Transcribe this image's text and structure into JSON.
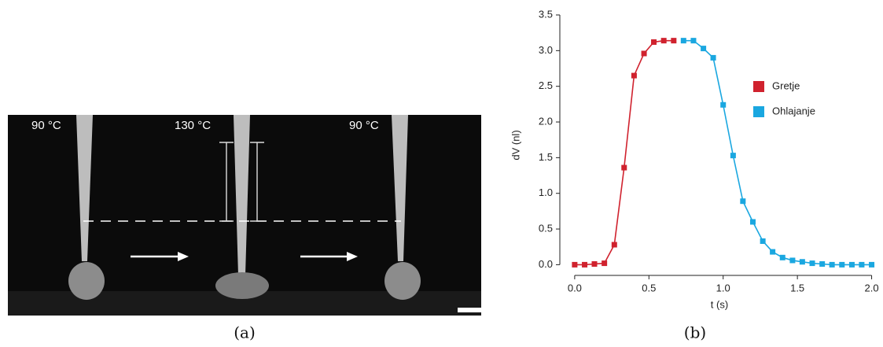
{
  "figure": {
    "photo_labels": [
      "90 °C",
      "130 °C",
      "90 °C"
    ],
    "captions": [
      "(a)",
      "(b)"
    ]
  },
  "chart_data": {
    "type": "line",
    "xlabel": "t (s)",
    "ylabel": "dV (nl)",
    "xlim": [
      -0.1,
      2.05
    ],
    "ylim": [
      -0.15,
      3.5
    ],
    "xticks": [
      {
        "value": 0,
        "label": "0.0"
      },
      0.5,
      {
        "value": 1,
        "label": "1.0"
      },
      1.5,
      {
        "value": 2,
        "label": "2.0"
      }
    ],
    "yticks": [
      {
        "value": 0,
        "label": "0.0"
      },
      0.5,
      {
        "value": 1,
        "label": "1.0"
      },
      1.5,
      {
        "value": 2,
        "label": "2.0"
      },
      2.5,
      {
        "value": 3,
        "label": "3.0"
      },
      3.5
    ],
    "legend": "center-right",
    "series": [
      {
        "name": "Gretje",
        "color": "#d0222e",
        "x": [
          0,
          0.067,
          0.133,
          0.2,
          0.267,
          0.333,
          0.4,
          0.467,
          0.533,
          0.6,
          0.667
        ],
        "values": [
          0,
          0,
          0.01,
          0.02,
          0.28,
          1.36,
          2.65,
          2.96,
          3.12,
          3.14,
          3.14
        ]
      },
      {
        "name": "Ohlajanje",
        "color": "#1aa7e0",
        "x": [
          0.733,
          0.8,
          0.867,
          0.933,
          1.0,
          1.067,
          1.133,
          1.2,
          1.267,
          1.333,
          1.4,
          1.467,
          1.533,
          1.6,
          1.667,
          1.733,
          1.8,
          1.867,
          1.933,
          2.0
        ],
        "values": [
          3.14,
          3.14,
          3.03,
          2.9,
          2.24,
          1.53,
          0.89,
          0.6,
          0.33,
          0.18,
          0.1,
          0.06,
          0.04,
          0.02,
          0.01,
          0,
          0,
          0,
          0,
          0
        ]
      }
    ]
  }
}
